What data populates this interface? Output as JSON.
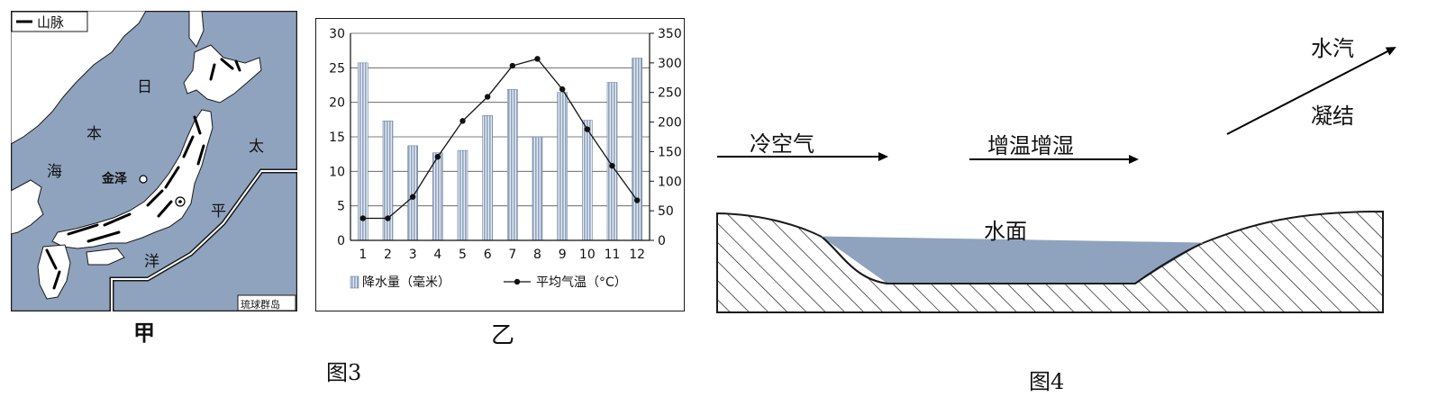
{
  "map_panel": {
    "legend_label": "山脉",
    "place_labels": [
      "日",
      "本",
      "海",
      "太",
      "平",
      "洋"
    ],
    "city_label": "金泽",
    "inset_label": "琉球群岛",
    "panel_label": "甲",
    "colors": {
      "sea": "#8fa3be",
      "land": "#ffffff",
      "border": "#1a1a1a"
    }
  },
  "chart_panel": {
    "panel_label": "乙"
  },
  "chart_data": {
    "type": "bar",
    "categories": [
      "1",
      "2",
      "3",
      "4",
      "5",
      "6",
      "7",
      "8",
      "9",
      "10",
      "11",
      "12"
    ],
    "series": [
      {
        "name": "降水量（毫米）",
        "type": "bar",
        "axis": "right",
        "values": [
          300,
          202,
          160,
          148,
          152,
          211,
          255,
          175,
          250,
          203,
          267,
          308
        ],
        "color": "#8fa3be"
      },
      {
        "name": "平均气温（°C）",
        "type": "line",
        "axis": "left",
        "values": [
          3.2,
          3.2,
          6.3,
          12.1,
          17.3,
          20.8,
          25.3,
          26.3,
          21.9,
          16.1,
          10.8,
          5.8
        ],
        "color": "#111111"
      }
    ],
    "y_left_ticks": [
      "0",
      "5",
      "10",
      "15",
      "20",
      "25",
      "30"
    ],
    "y_right_ticks": [
      "0",
      "50",
      "100",
      "150",
      "200",
      "250",
      "300",
      "350"
    ],
    "ylim_left": [
      0,
      30
    ],
    "ylim_right": [
      0,
      350
    ],
    "grid": "horizontal",
    "legend_position": "bottom"
  },
  "figure3_caption": "图3",
  "diagram": {
    "cold_air_label": "冷空气",
    "warm_label": "增温增湿",
    "vapor_label": "水汽",
    "condense_label": "凝结",
    "water_label": "水面",
    "caption": "图4",
    "colors": {
      "water": "#8fa3be"
    }
  }
}
